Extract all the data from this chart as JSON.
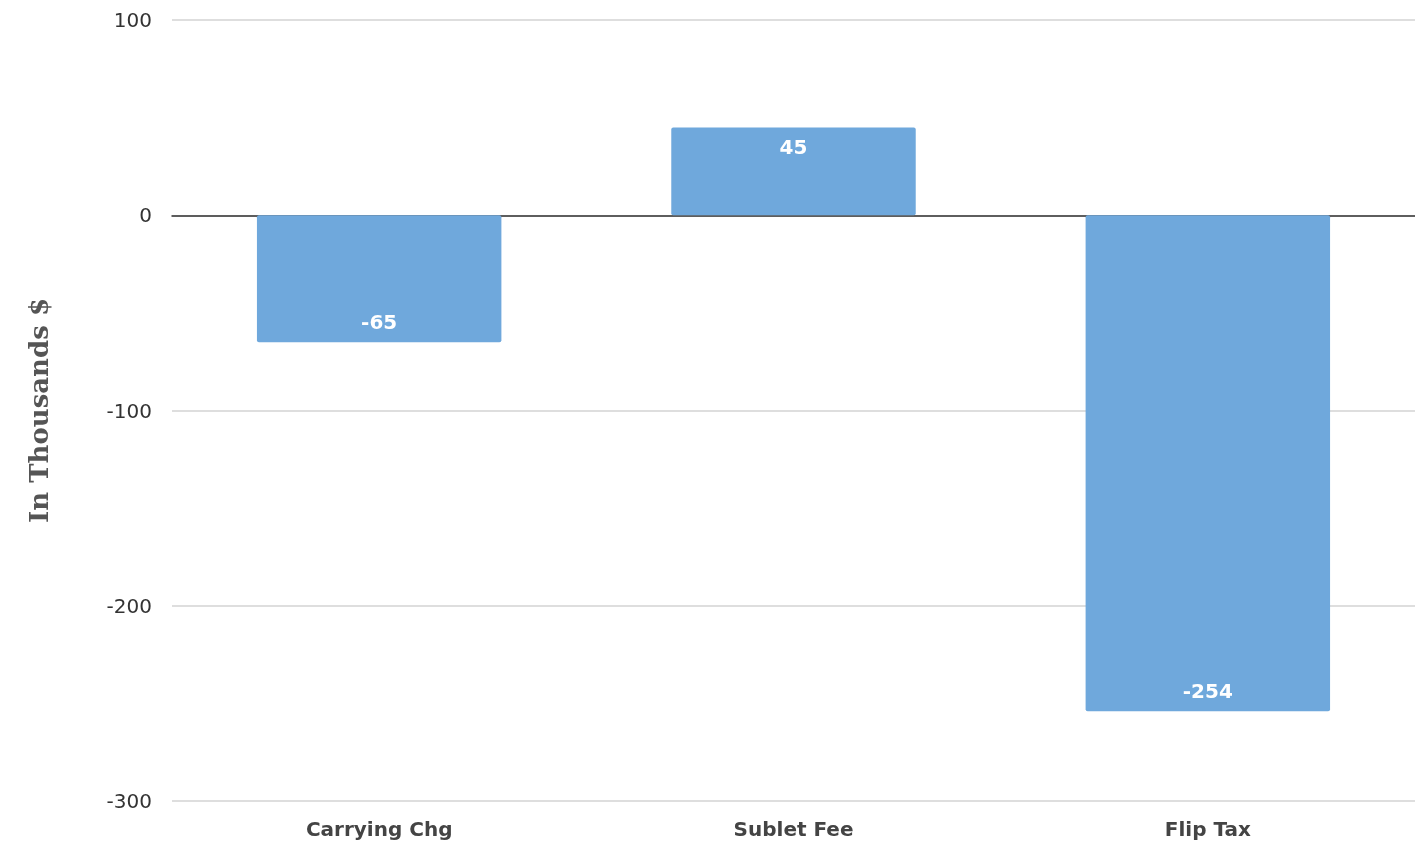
{
  "chart_data": {
    "type": "bar",
    "ylabel": "In Thousands $",
    "categories": [
      "Carrying Chg",
      "Sublet Fee",
      "Flip Tax"
    ],
    "values": [
      -65,
      45,
      -254
    ],
    "color": "#6fa8dc",
    "ylim": [
      -300,
      100
    ],
    "yticks": [
      100,
      0,
      -100,
      -200,
      -300
    ],
    "grid": "y",
    "data_labels": true
  }
}
